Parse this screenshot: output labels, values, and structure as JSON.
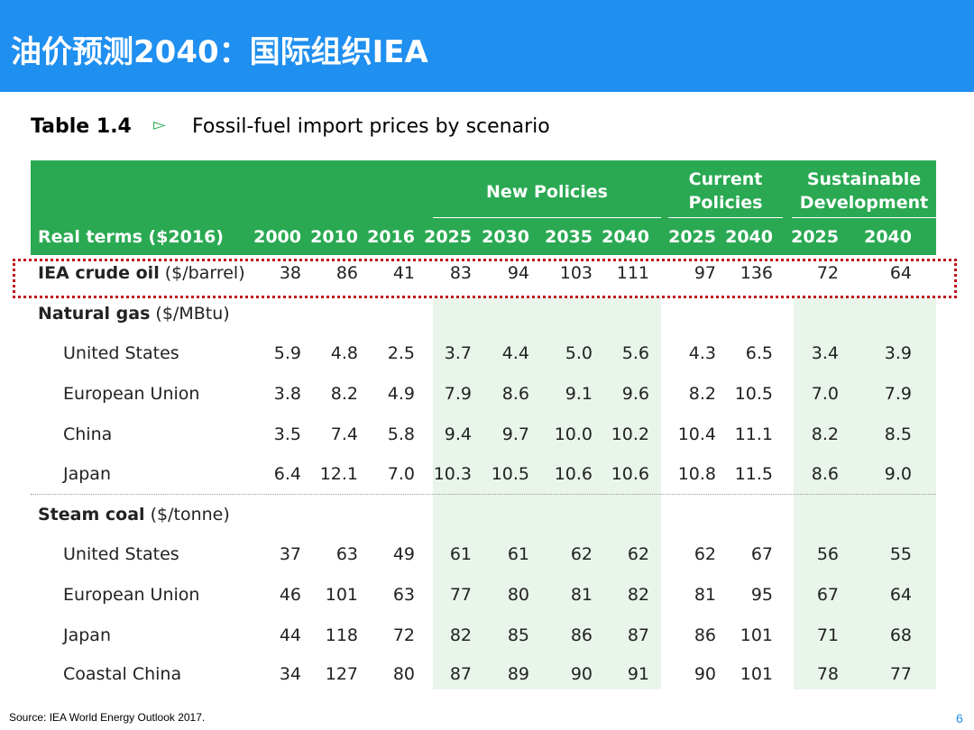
{
  "header": {
    "title": "油价预测2040：国际组织IEA"
  },
  "table_title": {
    "label": "Table 1.4",
    "caption": "Fossil-fuel import prices by scenario"
  },
  "table": {
    "groups": [
      "New Policies",
      "Current Policies",
      "Sustainable Development"
    ],
    "corner": "Real terms ($2016)",
    "columns": [
      "2000",
      "2010",
      "2016",
      "2025",
      "2030",
      "2035",
      "2040",
      "2025",
      "2040",
      "2025",
      "2040"
    ],
    "rows": [
      {
        "label": "IEA crude oil",
        "unit": "($/barrel)",
        "values": [
          "38",
          "86",
          "41",
          "83",
          "94",
          "103",
          "111",
          "97",
          "136",
          "72",
          "64"
        ]
      },
      {
        "label": "Natural gas",
        "unit": "($/MBtu)"
      },
      {
        "label": "United States",
        "values": [
          "5.9",
          "4.8",
          "2.5",
          "3.7",
          "4.4",
          "5.0",
          "5.6",
          "4.3",
          "6.5",
          "3.4",
          "3.9"
        ]
      },
      {
        "label": "European Union",
        "values": [
          "3.8",
          "8.2",
          "4.9",
          "7.9",
          "8.6",
          "9.1",
          "9.6",
          "8.2",
          "10.5",
          "7.0",
          "7.9"
        ]
      },
      {
        "label": "China",
        "values": [
          "3.5",
          "7.4",
          "5.8",
          "9.4",
          "9.7",
          "10.0",
          "10.2",
          "10.4",
          "11.1",
          "8.2",
          "8.5"
        ]
      },
      {
        "label": "Japan",
        "values": [
          "6.4",
          "12.1",
          "7.0",
          "10.3",
          "10.5",
          "10.6",
          "10.6",
          "10.8",
          "11.5",
          "8.6",
          "9.0"
        ]
      },
      {
        "label": "Steam coal",
        "unit": "($/tonne)"
      },
      {
        "label": "United States",
        "values": [
          "37",
          "63",
          "49",
          "61",
          "61",
          "62",
          "62",
          "62",
          "67",
          "56",
          "55"
        ]
      },
      {
        "label": "European Union",
        "values": [
          "46",
          "101",
          "63",
          "77",
          "80",
          "81",
          "82",
          "81",
          "95",
          "67",
          "64"
        ]
      },
      {
        "label": "Japan",
        "values": [
          "44",
          "118",
          "72",
          "82",
          "85",
          "86",
          "87",
          "86",
          "101",
          "71",
          "68"
        ]
      },
      {
        "label": "Coastal China",
        "values": [
          "34",
          "127",
          "80",
          "87",
          "89",
          "90",
          "91",
          "90",
          "101",
          "78",
          "77"
        ]
      }
    ]
  },
  "footer": {
    "source": "Source: IEA World Energy Outlook 2017.",
    "page": "6"
  }
}
